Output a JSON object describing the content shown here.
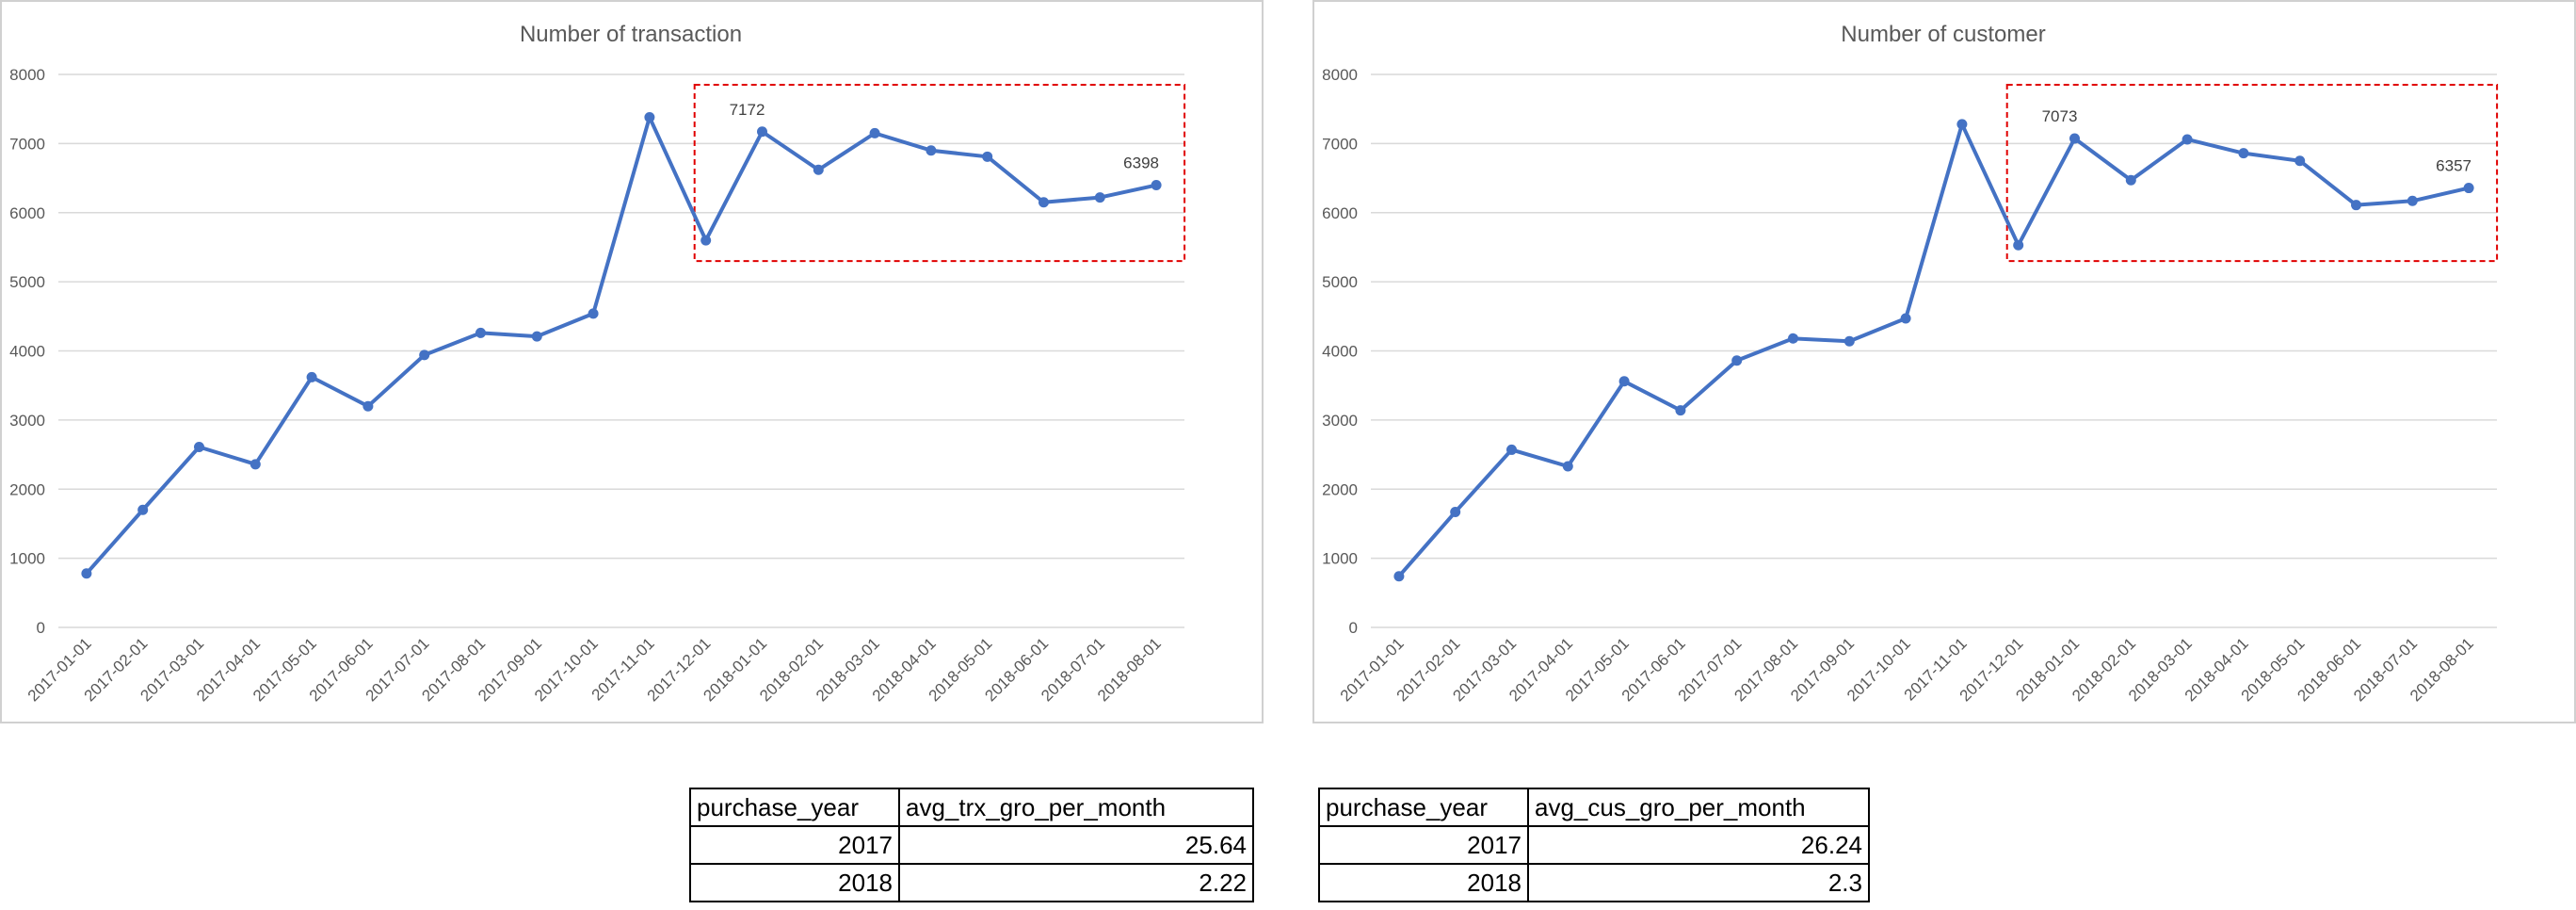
{
  "charts": [
    {
      "chart_data": {
        "type": "line",
        "title": "Number of transaction",
        "xlabel": "",
        "ylabel": "",
        "ylim": [
          0,
          8000
        ],
        "yticks": [
          "0",
          "1000",
          "2000",
          "3000",
          "4000",
          "5000",
          "6000",
          "7000",
          "8000"
        ],
        "grid": true,
        "categories": [
          "2017-01-01",
          "2017-02-01",
          "2017-03-01",
          "2017-04-01",
          "2017-05-01",
          "2017-06-01",
          "2017-07-01",
          "2017-08-01",
          "2017-09-01",
          "2017-10-01",
          "2017-11-01",
          "2017-12-01",
          "2018-01-01",
          "2018-02-01",
          "2018-03-01",
          "2018-04-01",
          "2018-05-01",
          "2018-06-01",
          "2018-07-01",
          "2018-08-01"
        ],
        "series": [
          {
            "values": [
              780,
              1700,
              2610,
              2360,
              3620,
              3200,
              3940,
              4260,
              4210,
              4540,
              7380,
              5600,
              7172,
              6620,
              7150,
              6900,
              6810,
              6150,
              6220,
              6398
            ]
          }
        ],
        "data_labels": [
          {
            "index": 12,
            "text": "7172"
          },
          {
            "index": 19,
            "text": "6398"
          }
        ],
        "highlight_range": {
          "from": "2017-12-01",
          "to": "2018-08-01",
          "y": [
            5300,
            7850
          ]
        },
        "line_color": "#4472C4",
        "highlight_color": "#E00000"
      }
    },
    {
      "chart_data": {
        "type": "line",
        "title": "Number of customer",
        "xlabel": "",
        "ylabel": "",
        "ylim": [
          0,
          8000
        ],
        "yticks": [
          "0",
          "1000",
          "2000",
          "3000",
          "4000",
          "5000",
          "6000",
          "7000",
          "8000"
        ],
        "grid": true,
        "categories": [
          "2017-01-01",
          "2017-02-01",
          "2017-03-01",
          "2017-04-01",
          "2017-05-01",
          "2017-06-01",
          "2017-07-01",
          "2017-08-01",
          "2017-09-01",
          "2017-10-01",
          "2017-11-01",
          "2017-12-01",
          "2018-01-01",
          "2018-02-01",
          "2018-03-01",
          "2018-04-01",
          "2018-05-01",
          "2018-06-01",
          "2018-07-01",
          "2018-08-01"
        ],
        "series": [
          {
            "values": [
              740,
              1670,
              2570,
              2330,
              3560,
              3140,
              3860,
              4180,
              4140,
              4470,
              7280,
              5530,
              7073,
              6470,
              7060,
              6860,
              6750,
              6110,
              6170,
              6357
            ]
          }
        ],
        "data_labels": [
          {
            "index": 12,
            "text": "7073"
          },
          {
            "index": 19,
            "text": "6357"
          }
        ],
        "highlight_range": {
          "from": "2017-12-01",
          "to": "2018-08-01",
          "y": [
            5300,
            7850
          ]
        },
        "line_color": "#4472C4",
        "highlight_color": "#E00000"
      }
    }
  ],
  "tables": [
    {
      "headers": [
        "purchase_year",
        "avg_trx_gro_per_month"
      ],
      "rows": [
        [
          "2017",
          "25.64"
        ],
        [
          "2018",
          "2.22"
        ]
      ]
    },
    {
      "headers": [
        "purchase_year",
        "avg_cus_gro_per_month"
      ],
      "rows": [
        [
          "2017",
          "26.24"
        ],
        [
          "2018",
          "2.3"
        ]
      ]
    }
  ]
}
